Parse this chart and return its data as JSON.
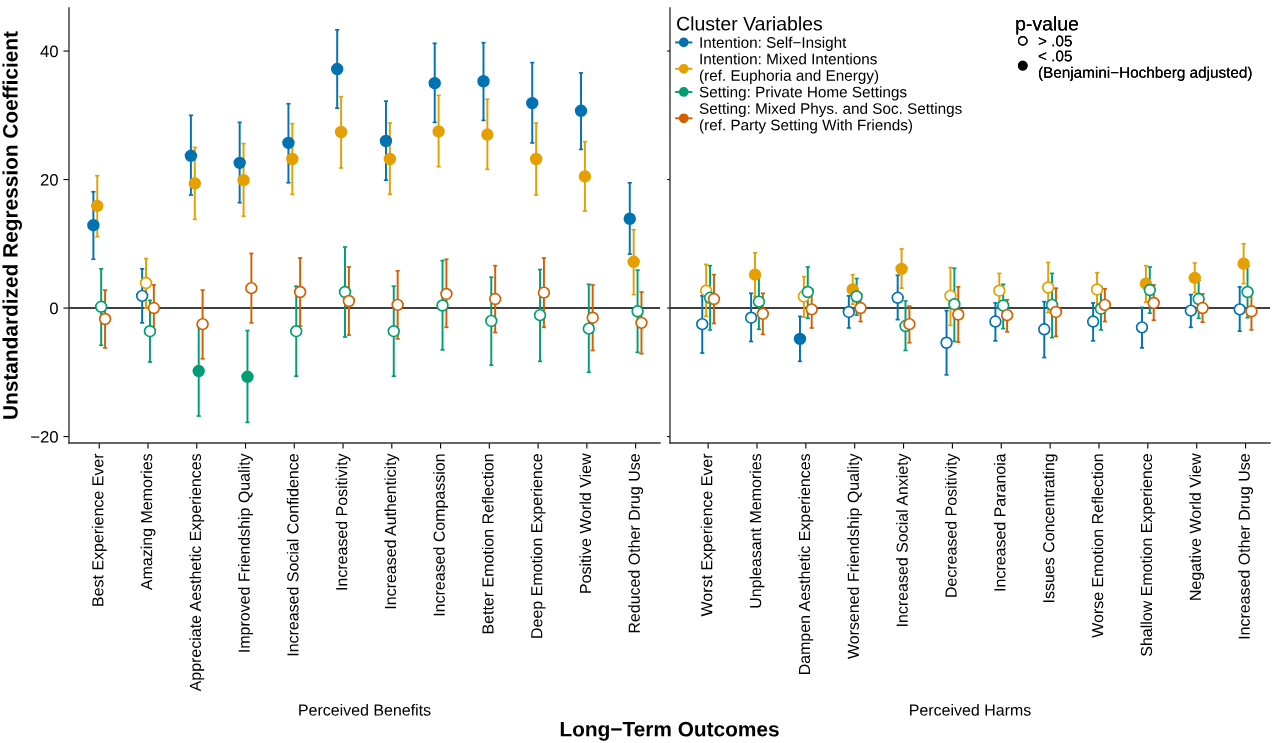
{
  "chart_data": [
    {
      "type": "scatter",
      "xlabel": "Perceived Benefits",
      "ylabel": "Unstandardized Regression Coefficient",
      "ylim": [
        -21,
        46.7
      ],
      "yticks": [
        -20,
        0,
        20,
        40
      ],
      "grid": false,
      "marker": "circle",
      "ref_lines": [
        {
          "axis": "y",
          "value": 0,
          "color": "#000000"
        }
      ],
      "annotations": [
        "Long−Term Outcomes"
      ],
      "categories": [
        "Best Experience Ever",
        "Amazing Memories",
        "Appreciate Aesthetic Experiences",
        "Improved Friendship Quality",
        "Increased Social Confidence",
        "Increased Positivity",
        "Increased Authenticity",
        "Increased Compassion",
        "Better Emotion Reflection",
        "Deep Emotion Experience",
        "Positive World View",
        "Reduced Other Drug Use"
      ],
      "series": [
        {
          "color": "#0072b2",
          "values": [
            12.9,
            1.9,
            23.7,
            22.6,
            25.7,
            37.2,
            26.0,
            35.0,
            35.3,
            31.9,
            30.7,
            13.9
          ],
          "errors": [
            [
              7.6,
              18.1
            ],
            [
              -2.3,
              6.1
            ],
            [
              17.6,
              30.0
            ],
            [
              16.4,
              28.9
            ],
            [
              19.5,
              31.8
            ],
            [
              31.1,
              43.3
            ],
            [
              19.9,
              32.2
            ],
            [
              28.9,
              41.2
            ],
            [
              29.2,
              41.3
            ],
            [
              25.7,
              38.2
            ],
            [
              24.7,
              36.6
            ],
            [
              8.4,
              19.5
            ]
          ],
          "colors": [
            "#0072b2",
            "#ffffff",
            "#0072b2",
            "#0072b2",
            "#0072b2",
            "#0072b2",
            "#0072b2",
            "#0072b2",
            "#0072b2",
            "#0072b2",
            "#0072b2",
            "#0072b2"
          ]
        },
        {
          "color": "#e69f00",
          "values": [
            15.9,
            3.9,
            19.4,
            19.9,
            23.2,
            27.4,
            23.2,
            27.5,
            27.0,
            23.2,
            20.5,
            7.2
          ],
          "errors": [
            [
              11.1,
              20.6
            ],
            [
              0.0,
              7.7
            ],
            [
              13.8,
              25.0
            ],
            [
              14.3,
              25.6
            ],
            [
              17.7,
              28.7
            ],
            [
              21.8,
              32.9
            ],
            [
              17.7,
              28.8
            ],
            [
              22.0,
              33.1
            ],
            [
              21.6,
              32.5
            ],
            [
              17.6,
              28.8
            ],
            [
              15.1,
              25.9
            ],
            [
              2.1,
              12.2
            ]
          ],
          "colors": [
            "#e69f00",
            "#ffffff",
            "#e69f00",
            "#e69f00",
            "#e69f00",
            "#e69f00",
            "#e69f00",
            "#e69f00",
            "#e69f00",
            "#e69f00",
            "#e69f00",
            "#e69f00"
          ]
        },
        {
          "color": "#009e73",
          "values": [
            0.2,
            -3.6,
            -9.8,
            -10.7,
            -3.6,
            2.5,
            -3.6,
            0.4,
            -2.0,
            -1.1,
            -3.2,
            -0.5
          ],
          "errors": [
            [
              -5.8,
              6.1
            ],
            [
              -8.4,
              1.2
            ],
            [
              -16.8,
              -2.7
            ],
            [
              -17.8,
              -3.5
            ],
            [
              -10.6,
              3.4
            ],
            [
              -4.5,
              9.5
            ],
            [
              -10.6,
              3.4
            ],
            [
              -6.5,
              7.4
            ],
            [
              -8.9,
              4.8
            ],
            [
              -8.3,
              6.0
            ],
            [
              -10.0,
              3.7
            ],
            [
              -6.9,
              5.9
            ]
          ],
          "colors": [
            "#ffffff",
            "#ffffff",
            "#009e73",
            "#009e73",
            "#ffffff",
            "#ffffff",
            "#ffffff",
            "#ffffff",
            "#ffffff",
            "#ffffff",
            "#ffffff",
            "#ffffff"
          ]
        },
        {
          "color": "#d55e00",
          "values": [
            -1.7,
            0.0,
            -2.5,
            3.1,
            2.5,
            1.1,
            0.5,
            2.2,
            1.4,
            2.4,
            -1.5,
            -2.3
          ],
          "errors": [
            [
              -6.2,
              2.8
            ],
            [
              -3.7,
              3.6
            ],
            [
              -7.9,
              2.8
            ],
            [
              -2.3,
              8.5
            ],
            [
              -2.8,
              7.8
            ],
            [
              -4.2,
              6.4
            ],
            [
              -4.8,
              5.8
            ],
            [
              -3.0,
              7.6
            ],
            [
              -3.8,
              6.6
            ],
            [
              -3.0,
              7.8
            ],
            [
              -6.6,
              3.6
            ],
            [
              -7.1,
              2.5
            ]
          ],
          "colors": [
            "#ffffff",
            "#ffffff",
            "#ffffff",
            "#ffffff",
            "#ffffff",
            "#ffffff",
            "#ffffff",
            "#ffffff",
            "#ffffff",
            "#ffffff",
            "#ffffff",
            "#ffffff"
          ]
        }
      ]
    },
    {
      "type": "scatter",
      "xlabel": "Perceived Harms",
      "ylim": [
        -21,
        46.7
      ],
      "yticks": [
        -20,
        0,
        20,
        40
      ],
      "tick_labels": "x",
      "grid": false,
      "marker": "circle",
      "legend": "top left",
      "legend_title": "Cluster Variables",
      "ref_lines": [
        {
          "axis": "y",
          "value": 0,
          "color": "#000000"
        }
      ],
      "annotations": [
        "p-value"
      ],
      "categories": [
        "Worst Experience Ever",
        "Unpleasant Memories",
        "Dampen Aesthetic Experiences",
        "Worsened Friendship Quality",
        "Increased Social Anxiety",
        "Decreased Positivity",
        "Increased Paranoia",
        "Issues Concentrating",
        "Worse Emotion Reflection",
        "Shallow Emotion Experience",
        "Negative World View",
        "Increased Other Drug Use"
      ],
      "series": [
        {
          "name": "Intention: Self−Insight",
          "color": "#0072b2",
          "values": [
            -2.5,
            -1.5,
            -4.8,
            -0.6,
            1.6,
            -5.4,
            -2.1,
            -3.3,
            -2.1,
            -3.0,
            -0.4,
            -0.2
          ],
          "errors": [
            [
              -7.0,
              1.9
            ],
            [
              -5.2,
              2.3
            ],
            [
              -8.3,
              -1.3
            ],
            [
              -3.1,
              1.9
            ],
            [
              -1.8,
              5.1
            ],
            [
              -10.4,
              -0.4
            ],
            [
              -5.1,
              0.8
            ],
            [
              -7.7,
              1.0
            ],
            [
              -5.1,
              0.8
            ],
            [
              -6.2,
              0.1
            ],
            [
              -3.0,
              2.1
            ],
            [
              -3.6,
              3.3
            ]
          ],
          "colors": [
            "#ffffff",
            "#ffffff",
            "#0072b2",
            "#ffffff",
            "#ffffff",
            "#ffffff",
            "#ffffff",
            "#ffffff",
            "#ffffff",
            "#ffffff",
            "#ffffff",
            "#ffffff"
          ]
        },
        {
          "name": "Intention: Mixed Intentions\n(ref. Euphoria and Energy)",
          "color": "#e69f00",
          "values": [
            2.7,
            5.2,
            1.8,
            2.9,
            6.1,
            1.9,
            2.7,
            3.2,
            2.9,
            3.8,
            4.7,
            6.9
          ],
          "errors": [
            [
              -1.3,
              6.8
            ],
            [
              1.8,
              8.6
            ],
            [
              -1.4,
              4.9
            ],
            [
              0.6,
              5.2
            ],
            [
              3.1,
              9.2
            ],
            [
              -2.7,
              6.3
            ],
            [
              -0.1,
              5.4
            ],
            [
              -0.7,
              7.1
            ],
            [
              0.2,
              5.5
            ],
            [
              0.9,
              6.6
            ],
            [
              2.4,
              7.0
            ],
            [
              3.8,
              10.0
            ]
          ],
          "colors": [
            "#ffffff",
            "#e69f00",
            "#ffffff",
            "#e69f00",
            "#e69f00",
            "#ffffff",
            "#ffffff",
            "#ffffff",
            "#ffffff",
            "#e69f00",
            "#e69f00",
            "#e69f00"
          ]
        },
        {
          "name": "Setting: Private Home Settings",
          "color": "#009e73",
          "values": [
            1.6,
            1.0,
            2.5,
            1.8,
            -2.8,
            0.6,
            0.4,
            0.5,
            -0.1,
            2.8,
            1.4,
            2.5
          ],
          "errors": [
            [
              -3.4,
              6.6
            ],
            [
              -3.3,
              5.2
            ],
            [
              -1.6,
              6.4
            ],
            [
              -1.1,
              4.6
            ],
            [
              -6.6,
              1.1
            ],
            [
              -5.2,
              6.2
            ],
            [
              -3.2,
              3.7
            ],
            [
              -4.6,
              5.4
            ],
            [
              -3.4,
              3.3
            ],
            [
              -0.8,
              6.4
            ],
            [
              -1.6,
              4.3
            ],
            [
              -1.5,
              6.5
            ]
          ],
          "colors": [
            "#ffffff",
            "#ffffff",
            "#ffffff",
            "#ffffff",
            "#ffffff",
            "#ffffff",
            "#ffffff",
            "#ffffff",
            "#ffffff",
            "#ffffff",
            "#ffffff",
            "#ffffff"
          ]
        },
        {
          "name": "Setting: Mixed Phys. and Soc. Settings\n(ref. Party Setting With Friends)",
          "color": "#d55e00",
          "values": [
            1.4,
            -0.9,
            -0.2,
            0.0,
            -2.5,
            -1.0,
            -1.1,
            -0.6,
            0.5,
            0.8,
            0.0,
            -0.5
          ],
          "errors": [
            [
              -2.4,
              5.2
            ],
            [
              -4.1,
              2.3
            ],
            [
              -3.1,
              2.9
            ],
            [
              -2.1,
              2.1
            ],
            [
              -5.4,
              0.3
            ],
            [
              -5.3,
              3.3
            ],
            [
              -3.7,
              1.3
            ],
            [
              -4.4,
              3.1
            ],
            [
              -2.1,
              3.0
            ],
            [
              -1.9,
              3.6
            ],
            [
              -2.2,
              2.2
            ],
            [
              -3.4,
              2.4
            ]
          ],
          "colors": [
            "#ffffff",
            "#ffffff",
            "#ffffff",
            "#ffffff",
            "#ffffff",
            "#ffffff",
            "#ffffff",
            "#ffffff",
            "#ffffff",
            "#ffffff",
            "#ffffff",
            "#ffffff"
          ]
        },
        {
          "name": "> .05",
          "color": "#ffffff",
          "values": [
            null,
            null,
            null,
            null,
            null,
            null,
            null,
            null,
            null,
            null,
            null,
            null
          ]
        },
        {
          "name": "< .05\n(Benjamini−Hochberg adjusted)",
          "color": "#000000",
          "values": [
            null,
            null,
            null,
            null,
            null,
            null,
            null,
            null,
            null,
            null,
            null,
            null
          ]
        }
      ]
    }
  ]
}
